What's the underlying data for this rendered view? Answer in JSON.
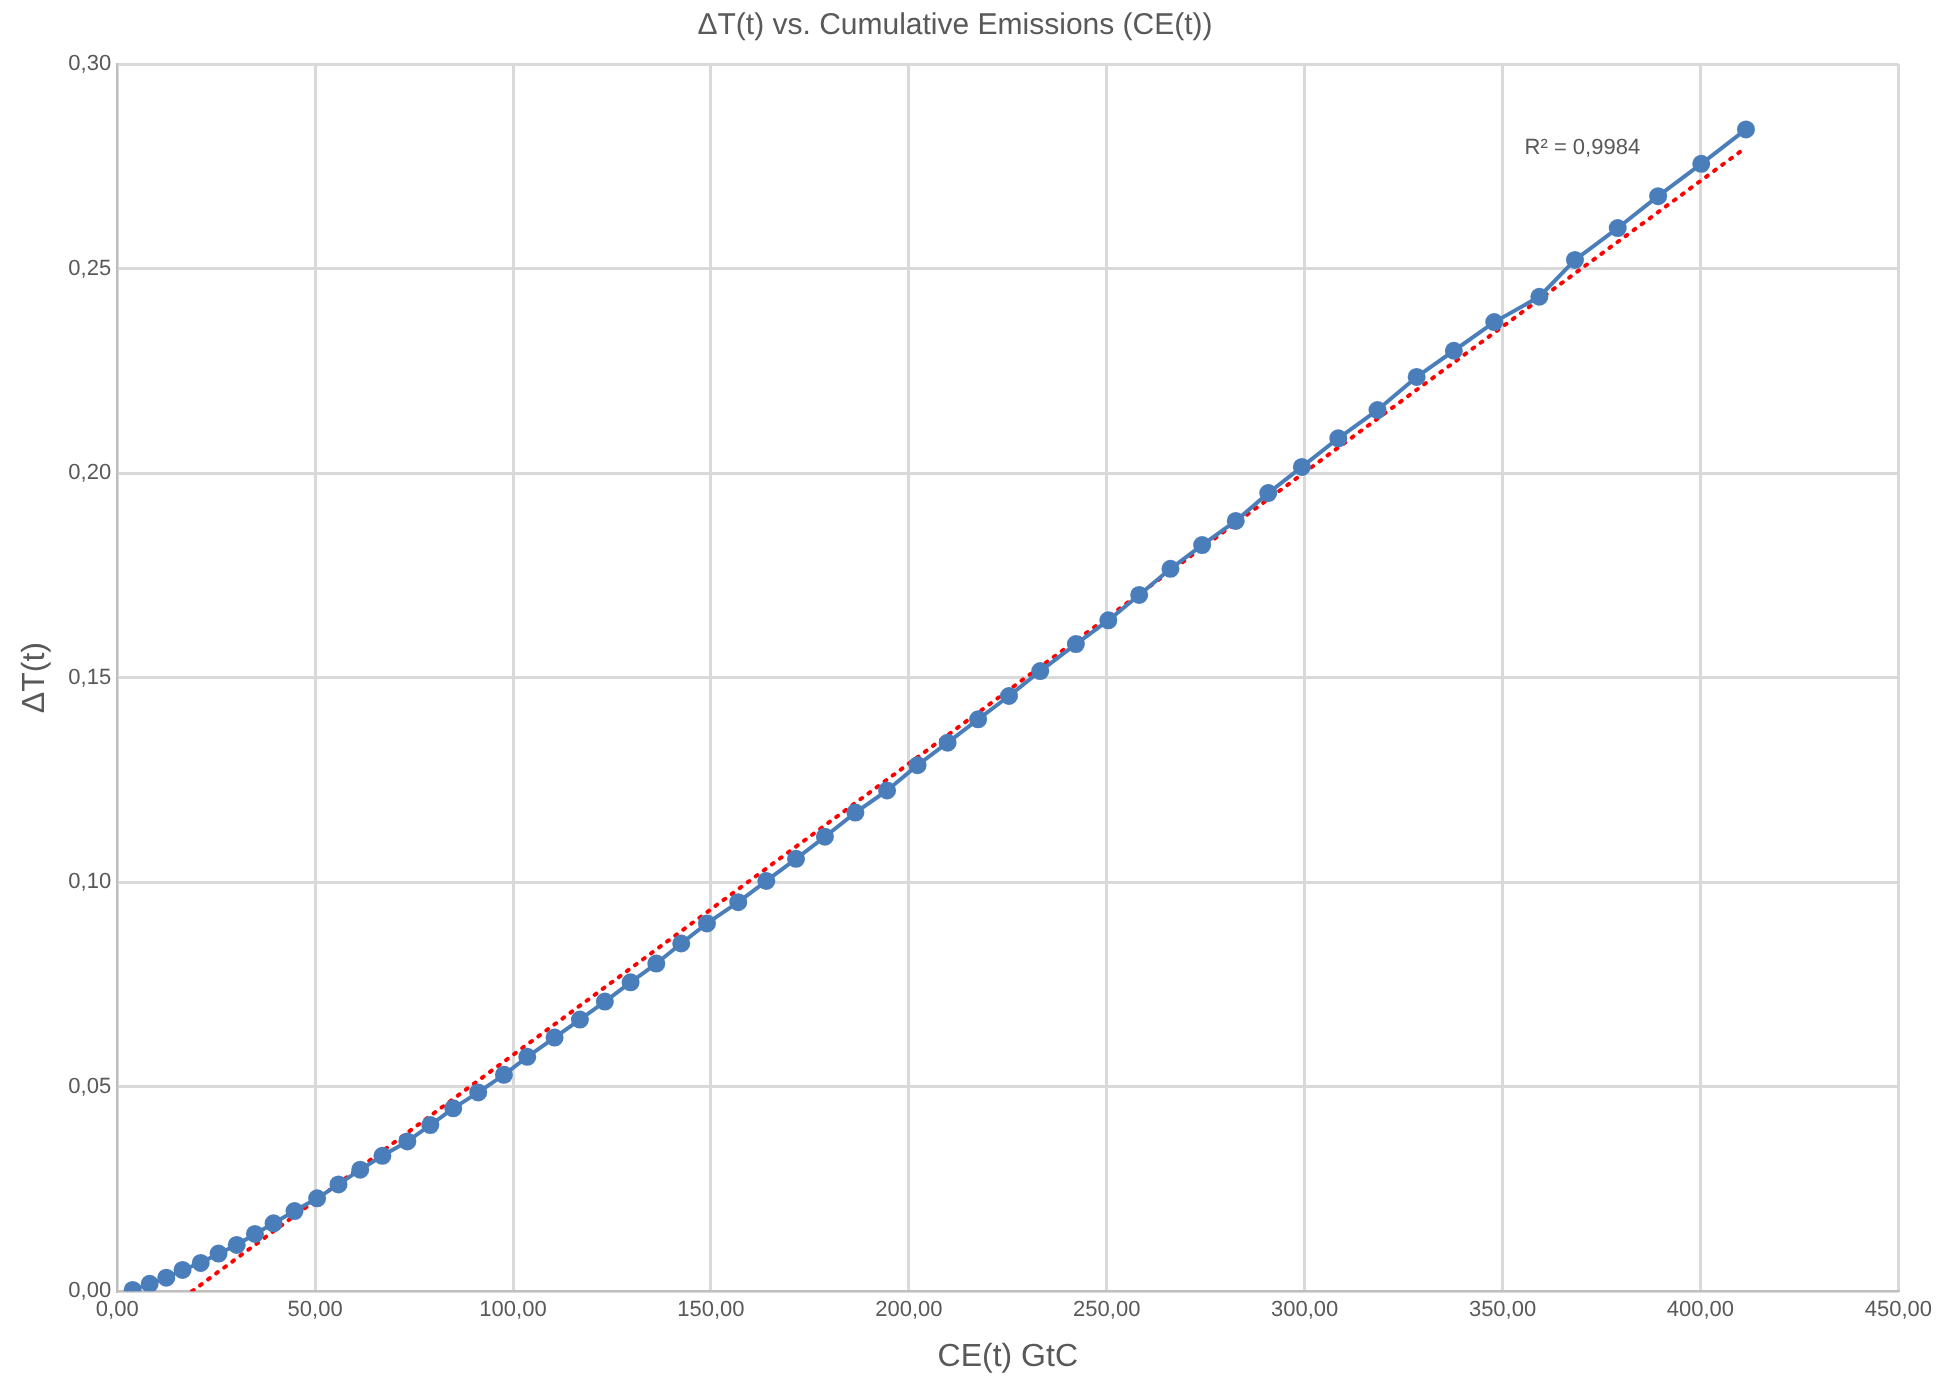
{
  "chart_data": {
    "type": "line",
    "title": "ΔT(t) vs. Cumulative Emissions (CE(t))",
    "xlabel": "CE(t) GtC",
    "ylabel": "ΔT(t)",
    "x": [
      3.9,
      8.2,
      12.4,
      16.5,
      21.1,
      25.6,
      30.2,
      34.8,
      39.5,
      44.8,
      50.5,
      55.9,
      61.4,
      67.0,
      73.3,
      79.1,
      84.9,
      91.2,
      97.7,
      103.6,
      110.5,
      116.9,
      123.2,
      129.7,
      136.2,
      142.5,
      149.0,
      156.9,
      164.0,
      171.5,
      178.8,
      186.5,
      194.5,
      202.2,
      209.8,
      217.5,
      225.3,
      233.2,
      242.2,
      250.4,
      258.2,
      266.1,
      274.1,
      282.6,
      290.8,
      299.3,
      308.5,
      318.4,
      328.3,
      337.7,
      347.9,
      359.3,
      368.3,
      379.1,
      389.3,
      400.2,
      411.5
    ],
    "series": [
      {
        "color": "#4a7ebb",
        "line_style": "solid",
        "values": [
          0.0003,
          0.0018,
          0.0033,
          0.0052,
          0.0069,
          0.0092,
          0.0113,
          0.014,
          0.0166,
          0.0196,
          0.0227,
          0.0261,
          0.0297,
          0.0331,
          0.0366,
          0.0406,
          0.0447,
          0.0486,
          0.0529,
          0.0573,
          0.062,
          0.0664,
          0.0708,
          0.0755,
          0.0801,
          0.085,
          0.0899,
          0.0951,
          0.1003,
          0.1057,
          0.1111,
          0.117,
          0.1224,
          0.1286,
          0.1341,
          0.1398,
          0.1455,
          0.1516,
          0.1582,
          0.164,
          0.1702,
          0.1766,
          0.1824,
          0.1883,
          0.1951,
          0.2015,
          0.2085,
          0.2154,
          0.2235,
          0.2299,
          0.2369,
          0.2431,
          0.2521,
          0.2599,
          0.2677,
          0.2756,
          0.284
        ]
      },
      {
        "color": "#ff0000",
        "marker": "none",
        "line_style": "dotted",
        "x": [
          18.9,
          411.5
        ],
        "values": [
          0,
          0.2796
        ]
      }
    ],
    "xlim": [
      0,
      450
    ],
    "xticks": [
      {
        "value": 0,
        "label": "0,00"
      },
      {
        "value": 50,
        "label": "50,00"
      },
      {
        "value": 100,
        "label": "100,00"
      },
      {
        "value": 150,
        "label": "150,00"
      },
      {
        "value": 200,
        "label": "200,00"
      },
      {
        "value": 250,
        "label": "250,00"
      },
      {
        "value": 300,
        "label": "300,00"
      },
      {
        "value": 350,
        "label": "350,00"
      },
      {
        "value": 400,
        "label": "400,00"
      },
      {
        "value": 450,
        "label": "450,00"
      }
    ],
    "ylim": [
      0,
      0.3
    ],
    "yticks": [
      {
        "value": 0,
        "label": "0,00"
      },
      {
        "value": 0.05,
        "label": "0,05"
      },
      {
        "value": 0.1,
        "label": "0,10"
      },
      {
        "value": 0.15,
        "label": "0,15"
      },
      {
        "value": 0.2,
        "label": "0,20"
      },
      {
        "value": 0.25,
        "label": "0,25"
      },
      {
        "value": 0.3,
        "label": "0,30"
      }
    ],
    "annotations": [
      "R² = 0,9984"
    ],
    "grid": true,
    "legend": false,
    "marker": "circle"
  }
}
